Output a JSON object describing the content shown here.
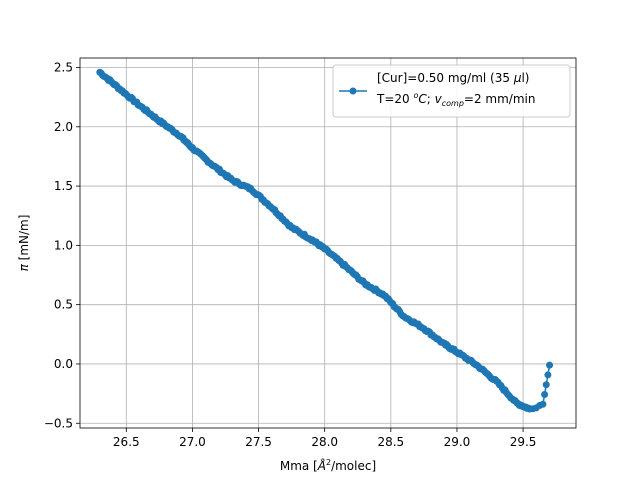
{
  "chart_data": {
    "type": "line",
    "xlabel": "Mma [Å²/molec]",
    "ylabel": "π [mN/m]",
    "xlim": [
      26.15,
      29.9
    ],
    "ylim": [
      -0.54,
      2.58
    ],
    "x_ticks": [
      26.5,
      27.0,
      27.5,
      28.0,
      28.5,
      29.0,
      29.5
    ],
    "y_ticks": [
      -0.5,
      0.0,
      0.5,
      1.0,
      1.5,
      2.0,
      2.5
    ],
    "x_tick_labels": [
      "26.5",
      "27.0",
      "27.5",
      "28.0",
      "28.5",
      "29.0",
      "29.5"
    ],
    "y_tick_labels": [
      "−0.5",
      "0.0",
      "0.5",
      "1.0",
      "1.5",
      "2.0",
      "2.5"
    ],
    "grid": true,
    "legend_position": "top-right",
    "series": [
      {
        "name": "[Cur]=0.50 mg/ml (35 μl)\nT=20 °C; v_comp=2 mm/min",
        "legend_line1": "[Cur]=0.50 mg/ml (35 μl)",
        "legend_line2": "T=20 °C; v_comp=2 mm/min",
        "color": "#1f77b4",
        "marker": "circle",
        "anchors": [
          [
            26.3,
            2.46
          ],
          [
            26.45,
            2.32
          ],
          [
            26.6,
            2.18
          ],
          [
            26.75,
            2.05
          ],
          [
            26.9,
            1.93
          ],
          [
            27.0,
            1.82
          ],
          [
            27.15,
            1.68
          ],
          [
            27.3,
            1.55
          ],
          [
            27.45,
            1.47
          ],
          [
            27.6,
            1.32
          ],
          [
            27.75,
            1.15
          ],
          [
            27.9,
            1.05
          ],
          [
            28.0,
            0.97
          ],
          [
            28.15,
            0.83
          ],
          [
            28.3,
            0.68
          ],
          [
            28.45,
            0.58
          ],
          [
            28.6,
            0.4
          ],
          [
            28.75,
            0.3
          ],
          [
            28.9,
            0.17
          ],
          [
            29.0,
            0.1
          ],
          [
            29.15,
            -0.01
          ],
          [
            29.3,
            -0.15
          ],
          [
            29.45,
            -0.33
          ],
          [
            29.55,
            -0.38
          ],
          [
            29.65,
            -0.34
          ],
          [
            29.7,
            -0.01
          ]
        ]
      }
    ]
  }
}
